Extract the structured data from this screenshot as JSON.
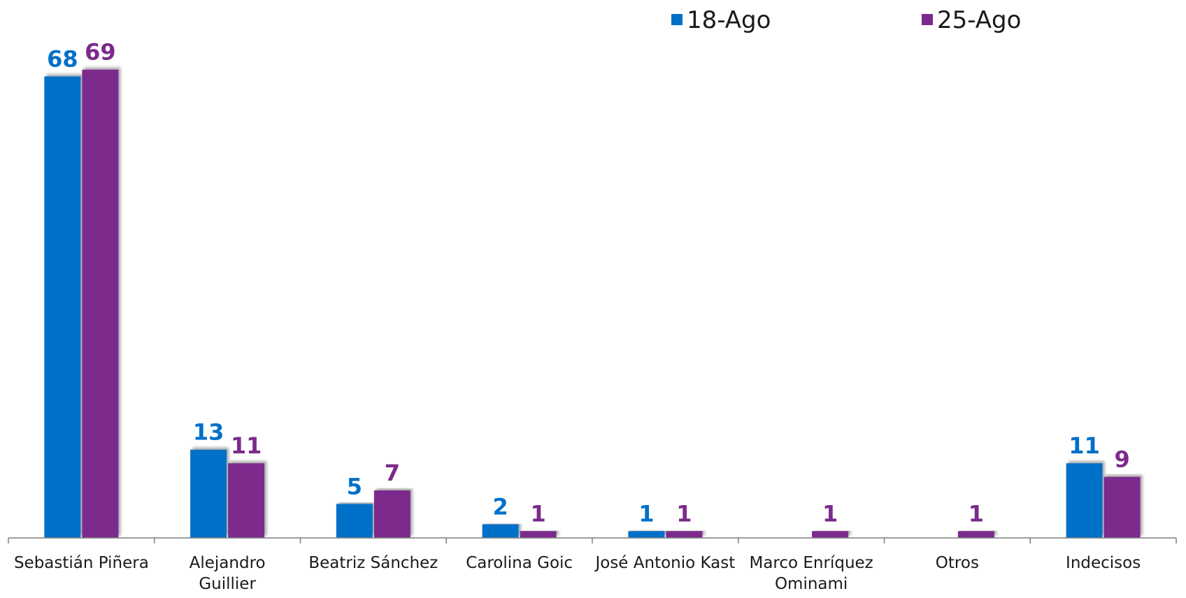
{
  "chart_data": {
    "type": "bar",
    "categories": [
      [
        "Sebastián Piñera"
      ],
      [
        "Alejandro",
        "Guillier"
      ],
      [
        "Beatriz Sánchez"
      ],
      [
        "Carolina Goic"
      ],
      [
        "José Antonio Kast"
      ],
      [
        "Marco Enríquez",
        "Ominami"
      ],
      [
        "Otros"
      ],
      [
        "Indecisos"
      ]
    ],
    "series": [
      {
        "name": "18-Ago",
        "color": "#0070C8",
        "values": [
          68,
          13,
          5,
          2,
          1,
          null,
          null,
          11
        ]
      },
      {
        "name": "25-Ago",
        "color": "#7B2A8C",
        "values": [
          69,
          11,
          7,
          1,
          1,
          1,
          1,
          9
        ]
      }
    ],
    "ylim": [
      0,
      70
    ],
    "grid": false,
    "legend_position": "top-right"
  }
}
